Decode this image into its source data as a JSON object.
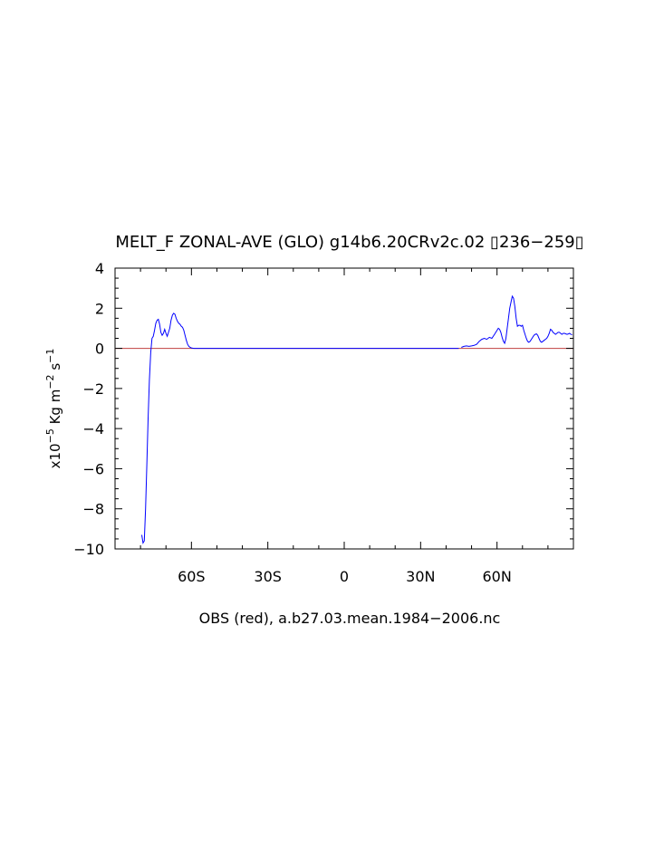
{
  "chart_data": {
    "type": "line",
    "title": "MELT_F ZONAL-AVE (GLO) g14b6.20CRv2c.02 \u001b236−259\u001b",
    "title_display": "MELT_F ZONAL-AVE (GLO) g14b6.20CRv2c.02 ▯236−259▯",
    "xlabel": "OBS (red), a.b27.03.mean.1984−2006.nc",
    "ylabel": {
      "prefix": "x10",
      "exp1": "−5",
      "mid": " Kg m",
      "exp2": "−2",
      "mid2": " s",
      "exp3": "−1"
    },
    "xlim": [
      -90,
      90
    ],
    "ylim": [
      -10,
      4
    ],
    "x_ticks": [
      {
        "value": -60,
        "label": "60S"
      },
      {
        "value": -30,
        "label": "30S"
      },
      {
        "value": 0,
        "label": "0"
      },
      {
        "value": 30,
        "label": "30N"
      },
      {
        "value": 60,
        "label": "60N"
      }
    ],
    "y_ticks": [
      {
        "value": 4,
        "label": "4"
      },
      {
        "value": 2,
        "label": "2"
      },
      {
        "value": 0,
        "label": "0"
      },
      {
        "value": -2,
        "label": "−2"
      },
      {
        "value": -4,
        "label": "−4"
      },
      {
        "value": -6,
        "label": "−6"
      },
      {
        "value": -8,
        "label": "−8"
      },
      {
        "value": -10,
        "label": "−10"
      }
    ],
    "grid": false,
    "series": [
      {
        "color": "#0000ff",
        "x": [
          -79.5,
          -79,
          -78.5,
          -78,
          -77.5,
          -77,
          -76.5,
          -76,
          -75.5,
          -75,
          -74.5,
          -74,
          -73.5,
          -73,
          -72.5,
          -72,
          -71.5,
          -71,
          -70.5,
          -70,
          -69.5,
          -69,
          -68.5,
          -68,
          -67.5,
          -67,
          -66.5,
          -66,
          -65.5,
          -65,
          -64.5,
          -64,
          -63.5,
          -63,
          -62.5,
          -62,
          -61.5,
          -61,
          -60.5,
          -60,
          -59.5,
          -59,
          -58.5,
          -58,
          -57.5,
          -57,
          -56.5,
          -56,
          -55.5,
          -55,
          -54,
          -50,
          -40,
          -30,
          -20,
          -10,
          0,
          10,
          20,
          30,
          40,
          45
        ],
        "values": [
          -9.3,
          -9.7,
          -9.6,
          -8.0,
          -5.8,
          -3.5,
          -1.6,
          -0.2,
          0.5,
          0.6,
          0.9,
          1.25,
          1.4,
          1.45,
          1.2,
          0.8,
          0.65,
          0.75,
          0.95,
          0.75,
          0.6,
          0.8,
          1.0,
          1.4,
          1.65,
          1.75,
          1.7,
          1.5,
          1.35,
          1.25,
          1.2,
          1.1,
          1.05,
          0.9,
          0.65,
          0.4,
          0.2,
          0.1,
          0.05,
          0.02,
          0.01,
          0,
          0,
          0,
          0,
          0,
          0,
          0,
          0,
          0,
          0,
          0,
          0,
          0,
          0,
          0,
          0,
          0,
          0,
          0,
          0,
          0
        ]
      },
      {
        "color": "#0000ff",
        "x": [
          46,
          47,
          48,
          49,
          50,
          51,
          52,
          53,
          54,
          55,
          56,
          57,
          58,
          59,
          60,
          60.5,
          61,
          61.5,
          62,
          62.5,
          63,
          63.5,
          64,
          64.5,
          65,
          65.5,
          66,
          66.5,
          67,
          67.5,
          68,
          68.5,
          69,
          69.5,
          70,
          70.5,
          71,
          71.5,
          72,
          72.5,
          73,
          73.5,
          74,
          74.5,
          75,
          75.5,
          76,
          76.5,
          77,
          77.5,
          78,
          78.5,
          79,
          79.5,
          80,
          80.5,
          81,
          81.5,
          82,
          82.5,
          83,
          83.5,
          84,
          84.5,
          85,
          85.5,
          86,
          86.5,
          87,
          87.5,
          88,
          88.5,
          89,
          89.5
        ],
        "values": [
          0.05,
          0.1,
          0.12,
          0.1,
          0.12,
          0.15,
          0.2,
          0.35,
          0.45,
          0.5,
          0.45,
          0.55,
          0.5,
          0.7,
          0.9,
          1.0,
          0.95,
          0.8,
          0.55,
          0.35,
          0.25,
          0.5,
          1.0,
          1.5,
          2.0,
          2.3,
          2.6,
          2.5,
          2.1,
          1.5,
          1.1,
          1.15,
          1.15,
          1.1,
          1.15,
          0.9,
          0.7,
          0.5,
          0.35,
          0.3,
          0.35,
          0.45,
          0.55,
          0.65,
          0.7,
          0.72,
          0.65,
          0.5,
          0.35,
          0.3,
          0.35,
          0.4,
          0.45,
          0.5,
          0.6,
          0.75,
          0.95,
          0.9,
          0.8,
          0.75,
          0.7,
          0.75,
          0.8,
          0.8,
          0.75,
          0.7,
          0.75,
          0.75,
          0.72,
          0.7,
          0.72,
          0.75,
          0.7,
          0.68
        ]
      }
    ],
    "reference_line": {
      "y": 0,
      "color": "#c04040"
    },
    "curve_color": "#0000ff"
  }
}
